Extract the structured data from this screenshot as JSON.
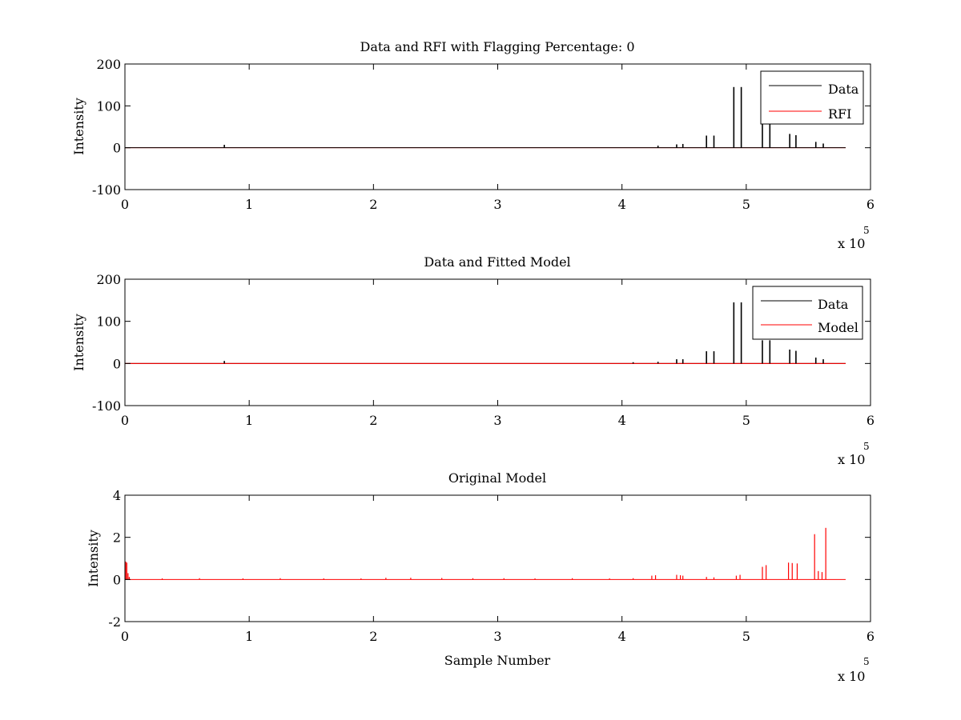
{
  "chart_data": [
    {
      "type": "line",
      "title": "Data and RFI with Flagging Percentage: 0",
      "xlabel": "",
      "ylabel": "Intensity",
      "xlim": [
        0,
        600000
      ],
      "ylim": [
        -100,
        200
      ],
      "x_ticks": [
        "0",
        "1",
        "2",
        "3",
        "4",
        "5",
        "6"
      ],
      "y_ticks": [
        "-100",
        "0",
        "100",
        "200"
      ],
      "x_exponent_base": "x 10",
      "x_exponent_power": "5",
      "grid": false,
      "legend_position": "top-right",
      "baseline": {
        "x_start": 0,
        "x_end": 580000,
        "y": 0
      },
      "series": [
        {
          "name": "Data",
          "color": "#000000",
          "spikes": [
            {
              "x": 80000,
              "y": 7
            },
            {
              "x": 429000,
              "y": 5
            },
            {
              "x": 444000,
              "y": 8
            },
            {
              "x": 449000,
              "y": 9
            },
            {
              "x": 468000,
              "y": 29
            },
            {
              "x": 474000,
              "y": 29
            },
            {
              "x": 490000,
              "y": 145
            },
            {
              "x": 496000,
              "y": 145
            },
            {
              "x": 513000,
              "y": 60
            },
            {
              "x": 519000,
              "y": 60
            },
            {
              "x": 535000,
              "y": 33
            },
            {
              "x": 540000,
              "y": 30
            },
            {
              "x": 556000,
              "y": 14
            },
            {
              "x": 562000,
              "y": 10
            }
          ]
        },
        {
          "name": "RFI",
          "color": "#ff0000",
          "spikes": []
        }
      ]
    },
    {
      "type": "line",
      "title": "Data and Fitted Model",
      "xlabel": "",
      "ylabel": "Intensity",
      "xlim": [
        0,
        600000
      ],
      "ylim": [
        -100,
        200
      ],
      "x_ticks": [
        "0",
        "1",
        "2",
        "3",
        "4",
        "5",
        "6"
      ],
      "y_ticks": [
        "-100",
        "0",
        "100",
        "200"
      ],
      "x_exponent_base": "x 10",
      "x_exponent_power": "5",
      "grid": false,
      "legend_position": "top-right",
      "baseline": {
        "x_start": 0,
        "x_end": 580000,
        "y": 0
      },
      "series": [
        {
          "name": "Data",
          "color": "#000000",
          "spikes": [
            {
              "x": 80000,
              "y": 6
            },
            {
              "x": 409000,
              "y": 3
            },
            {
              "x": 429000,
              "y": 4
            },
            {
              "x": 444000,
              "y": 10
            },
            {
              "x": 449000,
              "y": 10
            },
            {
              "x": 468000,
              "y": 29
            },
            {
              "x": 474000,
              "y": 29
            },
            {
              "x": 490000,
              "y": 145
            },
            {
              "x": 496000,
              "y": 145
            },
            {
              "x": 513000,
              "y": 55
            },
            {
              "x": 519000,
              "y": 55
            },
            {
              "x": 535000,
              "y": 33
            },
            {
              "x": 540000,
              "y": 30
            },
            {
              "x": 556000,
              "y": 14
            },
            {
              "x": 562000,
              "y": 10
            }
          ]
        },
        {
          "name": "Model",
          "color": "#ff0000",
          "spikes": []
        }
      ]
    },
    {
      "type": "line",
      "title": "Original Model",
      "xlabel": "Sample Number",
      "ylabel": "Intensity",
      "xlim": [
        0,
        600000
      ],
      "ylim": [
        -2,
        4
      ],
      "x_ticks": [
        "0",
        "1",
        "2",
        "3",
        "4",
        "5",
        "6"
      ],
      "y_ticks": [
        "-2",
        "0",
        "2",
        "4"
      ],
      "x_exponent_base": "x 10",
      "x_exponent_power": "5",
      "grid": false,
      "legend_position": "none",
      "baseline": {
        "x_start": 0,
        "x_end": 580000,
        "y": 0
      },
      "series": [
        {
          "color": "#ff0000",
          "spikes": [
            {
              "x": 600,
              "y": 0.85
            },
            {
              "x": 1500,
              "y": 0.8
            },
            {
              "x": 2500,
              "y": 0.3
            },
            {
              "x": 3500,
              "y": 0.12
            },
            {
              "x": 30000,
              "y": 0.05
            },
            {
              "x": 60000,
              "y": 0.06
            },
            {
              "x": 95000,
              "y": 0.05
            },
            {
              "x": 125000,
              "y": 0.06
            },
            {
              "x": 160000,
              "y": 0.05
            },
            {
              "x": 190000,
              "y": 0.05
            },
            {
              "x": 210000,
              "y": 0.08
            },
            {
              "x": 230000,
              "y": 0.08
            },
            {
              "x": 255000,
              "y": 0.07
            },
            {
              "x": 280000,
              "y": 0.06
            },
            {
              "x": 305000,
              "y": 0.06
            },
            {
              "x": 330000,
              "y": 0.05
            },
            {
              "x": 360000,
              "y": 0.06
            },
            {
              "x": 390000,
              "y": 0.05
            },
            {
              "x": 409000,
              "y": 0.06
            },
            {
              "x": 424000,
              "y": 0.18
            },
            {
              "x": 427000,
              "y": 0.2
            },
            {
              "x": 444000,
              "y": 0.22
            },
            {
              "x": 447000,
              "y": 0.2
            },
            {
              "x": 449000,
              "y": 0.18
            },
            {
              "x": 468000,
              "y": 0.12
            },
            {
              "x": 474000,
              "y": 0.1
            },
            {
              "x": 492000,
              "y": 0.18
            },
            {
              "x": 495000,
              "y": 0.22
            },
            {
              "x": 513000,
              "y": 0.6
            },
            {
              "x": 516000,
              "y": 0.68
            },
            {
              "x": 534000,
              "y": 0.8
            },
            {
              "x": 537000,
              "y": 0.78
            },
            {
              "x": 541000,
              "y": 0.76
            },
            {
              "x": 555000,
              "y": 2.15
            },
            {
              "x": 558000,
              "y": 0.4
            },
            {
              "x": 561000,
              "y": 0.35
            },
            {
              "x": 564000,
              "y": 2.45
            }
          ]
        }
      ]
    }
  ]
}
